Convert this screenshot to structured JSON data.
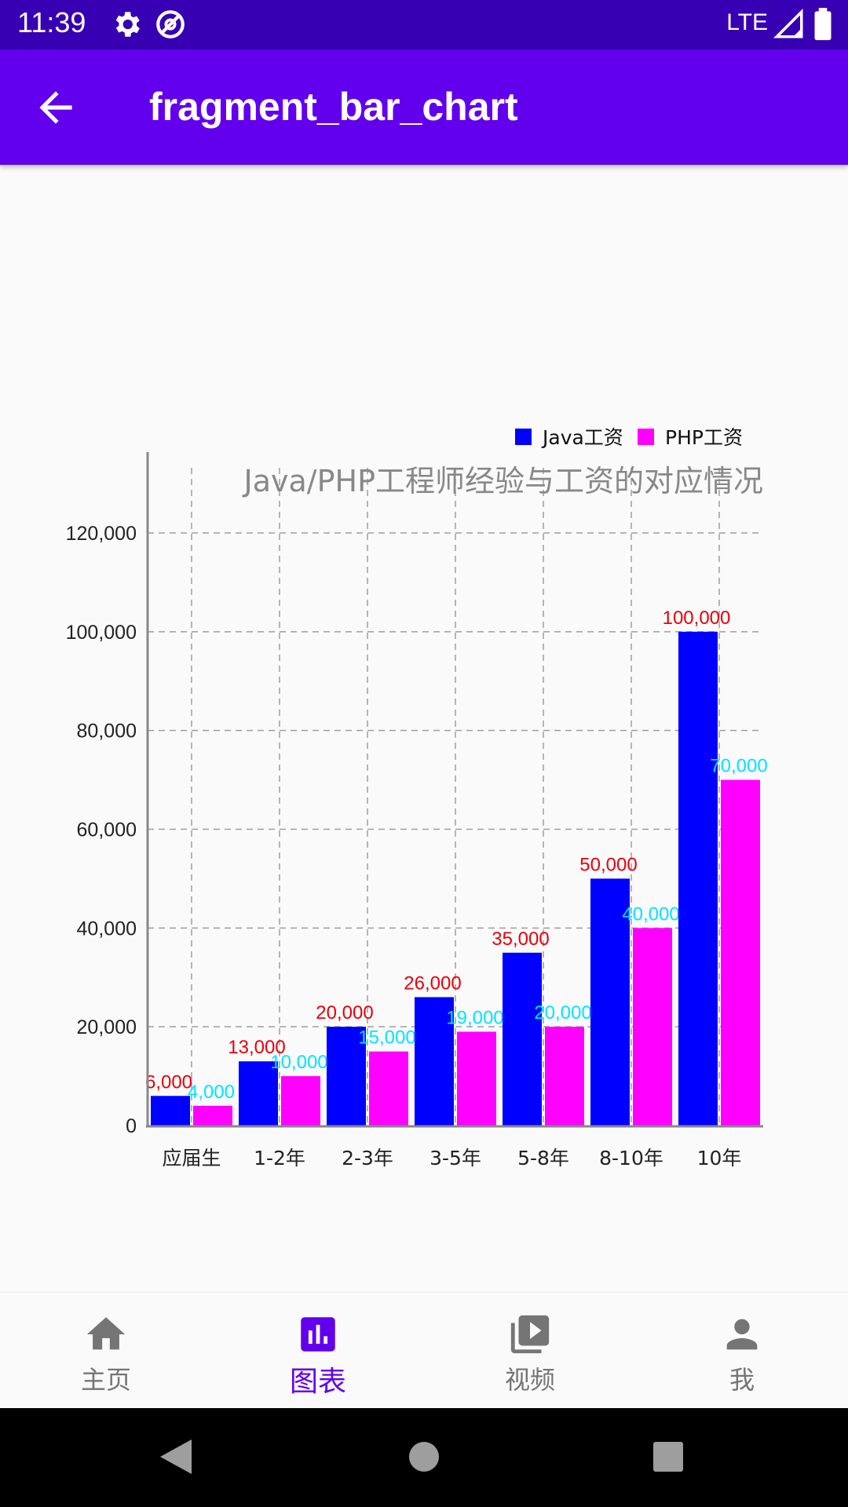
{
  "status_bar": {
    "time": "11:39",
    "network": "LTE",
    "icons": [
      "settings-icon",
      "vpn-key-icon",
      "signal-icon",
      "battery-icon"
    ]
  },
  "app_bar": {
    "title": "fragment_bar_chart",
    "back_icon": "arrow-back-icon"
  },
  "bottom_nav": {
    "items": [
      {
        "label": "主页",
        "icon": "home-icon",
        "active": false
      },
      {
        "label": "图表",
        "icon": "bar-chart-icon",
        "active": true
      },
      {
        "label": "视频",
        "icon": "video-library-icon",
        "active": false
      },
      {
        "label": "我",
        "icon": "person-icon",
        "active": false
      }
    ],
    "active_color": "#6200ee",
    "inactive_color": "#757575"
  },
  "system_nav": {
    "icons": [
      "back-triangle-icon",
      "home-circle-icon",
      "recents-square-icon"
    ]
  },
  "chart_data": {
    "type": "bar",
    "title": "Java/PHP工程师经验与工资的对应情况",
    "categories": [
      "应届生",
      "1-2年",
      "2-3年",
      "3-5年",
      "5-8年",
      "8-10年",
      "10年"
    ],
    "series": [
      {
        "name": "Java工资",
        "values": [
          6000,
          13000,
          20000,
          26000,
          35000,
          50000,
          100000
        ],
        "color": "#0000ff",
        "label_color": "#e8000b"
      },
      {
        "name": "PHP工资",
        "values": [
          4000,
          10000,
          15000,
          19000,
          20000,
          40000,
          70000
        ],
        "color": "#ff00ff",
        "label_color": "#00e5ff"
      }
    ],
    "value_labels": [
      [
        "6,000",
        "13,000",
        "20,000",
        "26,000",
        "35,000",
        "50,000",
        "100,000"
      ],
      [
        "4,000",
        "10,000",
        "15,000",
        "19,000",
        "20,000",
        "40,000",
        "70,000"
      ]
    ],
    "y_ticks": [
      "0",
      "20,000",
      "40,000",
      "60,000",
      "80,000",
      "100,000",
      "120,000"
    ],
    "y_tick_values": [
      0,
      20000,
      40000,
      60000,
      80000,
      100000,
      120000
    ],
    "ylim": [
      0,
      120000
    ],
    "grid": true,
    "legend_position": "top-right"
  }
}
